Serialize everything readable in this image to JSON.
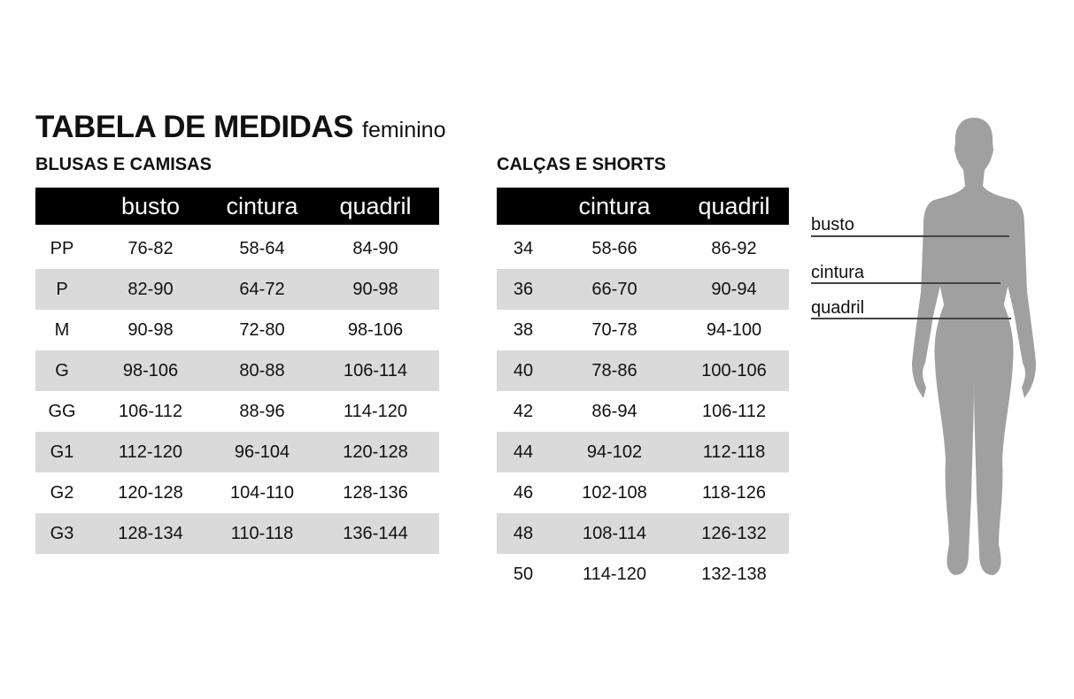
{
  "title": "TABELA DE MEDIDAS",
  "subtitle": "feminino",
  "blusas": {
    "heading": "BLUSAS E CAMISAS",
    "columns": [
      "",
      "busto",
      "cintura",
      "quadril"
    ],
    "rows": [
      [
        "PP",
        "76-82",
        "58-64",
        "84-90"
      ],
      [
        "P",
        "82-90",
        "64-72",
        "90-98"
      ],
      [
        "M",
        "90-98",
        "72-80",
        "98-106"
      ],
      [
        "G",
        "98-106",
        "80-88",
        "106-114"
      ],
      [
        "GG",
        "106-112",
        "88-96",
        "114-120"
      ],
      [
        "G1",
        "112-120",
        "96-104",
        "120-128"
      ],
      [
        "G2",
        "120-128",
        "104-110",
        "128-136"
      ],
      [
        "G3",
        "128-134",
        "110-118",
        "136-144"
      ]
    ]
  },
  "calcas": {
    "heading": "CALÇAS E SHORTS",
    "columns": [
      "",
      "cintura",
      "quadril"
    ],
    "rows": [
      [
        "34",
        "58-66",
        "86-92"
      ],
      [
        "36",
        "66-70",
        "90-94"
      ],
      [
        "38",
        "70-78",
        "94-100"
      ],
      [
        "40",
        "78-86",
        "100-106"
      ],
      [
        "42",
        "86-94",
        "106-112"
      ],
      [
        "44",
        "94-102",
        "112-118"
      ],
      [
        "46",
        "102-108",
        "118-126"
      ],
      [
        "48",
        "108-114",
        "126-132"
      ],
      [
        "50",
        "114-120",
        "132-138"
      ]
    ]
  },
  "figure": {
    "labels": {
      "busto": "busto",
      "cintura": "cintura",
      "quadril": "quadril"
    },
    "silhouette_color": "#a0a0a0"
  },
  "colors": {
    "header_bg": "#000000",
    "stripe": "#dadada"
  }
}
